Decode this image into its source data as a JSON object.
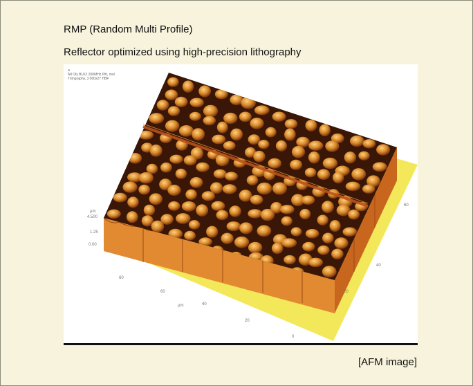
{
  "page": {
    "title": "RMP (Random Multi Profile)",
    "subtitle": "Reflector optimized using high-precision lithography",
    "caption": "[AFM image]"
  },
  "afm_image": {
    "meta_lines": [
      "a",
      "Nil Oly BLK2 200MHz Pitt, mol",
      "Trimgraphy, 3 000x27 HBF"
    ],
    "z_axis": {
      "unit": "µm",
      "ticks": [
        "4.500",
        "1.25",
        "0.00"
      ]
    },
    "x_axis": {
      "unit": "µm",
      "ticks": [
        "60",
        "40",
        "20"
      ]
    },
    "y_axis": {
      "ticks": [
        "60",
        "40",
        "20",
        "0"
      ]
    },
    "colors": {
      "base": "#f3e85a",
      "surface_dark": "#3a1606",
      "bump": "#d88a2a",
      "bump_highlight": "#ffd080",
      "wall": "#e28a32"
    }
  }
}
